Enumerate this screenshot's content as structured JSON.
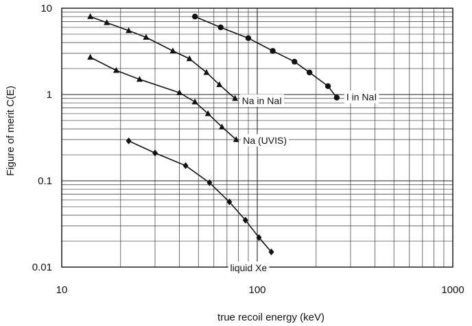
{
  "chart_data": {
    "type": "line",
    "title": "",
    "xlabel": "true recoil energy (keV)",
    "ylabel": "Figure of merit C(E)",
    "xscale": "log",
    "yscale": "log",
    "xlim": [
      10,
      1000
    ],
    "ylim": [
      0.01,
      10
    ],
    "grid": true,
    "x_ticks": [
      "10",
      "100",
      "1000"
    ],
    "y_ticks": [
      "0.01",
      "0.1",
      "1",
      "10"
    ],
    "series": [
      {
        "name": "I in NaI",
        "label": "I  in NaI",
        "marker": "circle",
        "x": [
          48,
          65,
          90,
          120,
          155,
          185,
          230,
          255
        ],
        "y": [
          8.0,
          6.0,
          4.5,
          3.2,
          2.4,
          1.8,
          1.25,
          0.92
        ]
      },
      {
        "name": "Na in NaI",
        "label": "Na in NaI",
        "marker": "triangle",
        "x": [
          14,
          17,
          22,
          27,
          37,
          45,
          55,
          64,
          77
        ],
        "y": [
          8.0,
          6.8,
          5.5,
          4.6,
          3.2,
          2.6,
          1.8,
          1.3,
          0.9
        ]
      },
      {
        "name": "Na (UVIS)",
        "label": "Na (UVIS)",
        "marker": "triangle",
        "x": [
          14,
          19,
          25,
          40,
          48,
          56,
          66,
          78
        ],
        "y": [
          2.7,
          1.9,
          1.5,
          1.05,
          0.82,
          0.6,
          0.42,
          0.3
        ]
      },
      {
        "name": "liquid Xe",
        "label": "liquid Xe",
        "marker": "diamond",
        "x": [
          22,
          30,
          43,
          57,
          72,
          87,
          102,
          118
        ],
        "y": [
          0.29,
          0.21,
          0.15,
          0.095,
          0.057,
          0.035,
          0.022,
          0.015
        ]
      }
    ]
  }
}
